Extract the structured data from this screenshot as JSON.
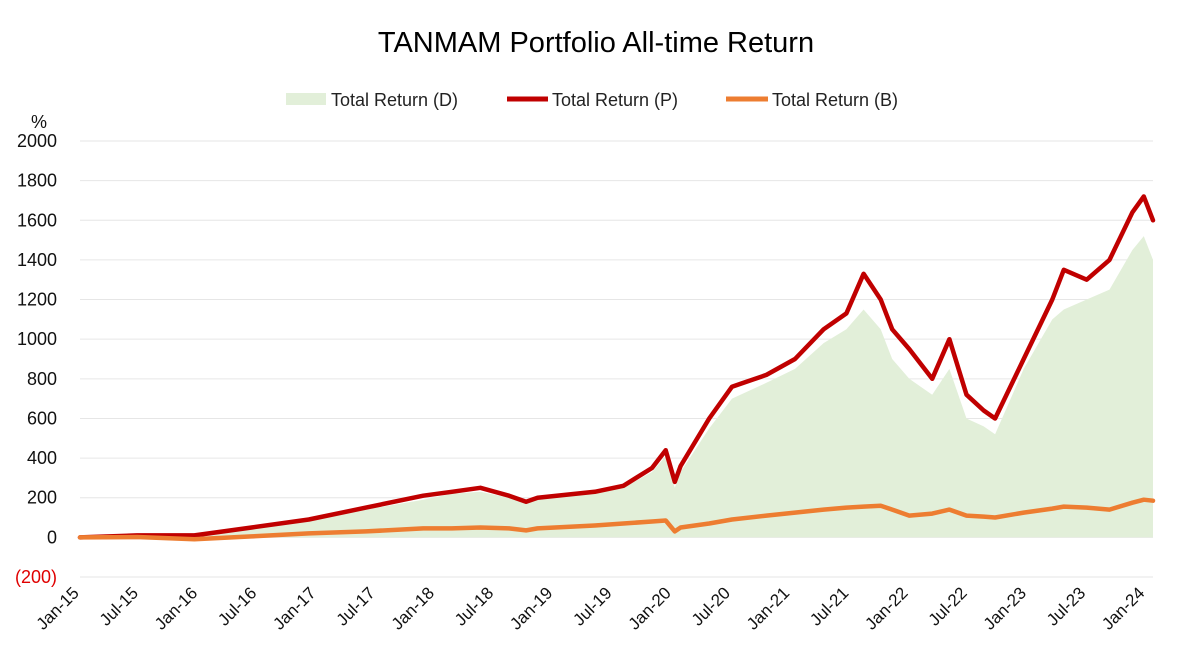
{
  "chart_data": {
    "type": "line",
    "title": "TANMAM Portfolio All-time Return",
    "ylabel": "%",
    "xlabel": "",
    "ylim": [
      -200,
      2000
    ],
    "yticks": [
      {
        "value": 2000,
        "label": "2000"
      },
      {
        "value": 1800,
        "label": "1800"
      },
      {
        "value": 1600,
        "label": "1600"
      },
      {
        "value": 1400,
        "label": "1400"
      },
      {
        "value": 1200,
        "label": "1200"
      },
      {
        "value": 1000,
        "label": "1000"
      },
      {
        "value": 800,
        "label": "800"
      },
      {
        "value": 600,
        "label": "600"
      },
      {
        "value": 400,
        "label": "400"
      },
      {
        "value": 200,
        "label": "200"
      },
      {
        "value": 0,
        "label": "0"
      },
      {
        "value": -200,
        "label": "(200)"
      }
    ],
    "categories": [
      "Jan-15",
      "Jul-15",
      "Jan-16",
      "Jul-16",
      "Jan-17",
      "Jul-17",
      "Jan-18",
      "Jul-18",
      "Jan-19",
      "Jul-19",
      "Jan-20",
      "Jul-20",
      "Jan-21",
      "Jul-21",
      "Jan-22",
      "Jul-22",
      "Jan-23",
      "Jul-23",
      "Jan-24"
    ],
    "x": [
      2015.0,
      2015.5,
      2016.0,
      2016.5,
      2017.0,
      2017.5,
      2018.0,
      2018.25,
      2018.5,
      2018.75,
      2018.9,
      2019.0,
      2019.5,
      2019.75,
      2020.0,
      2020.12,
      2020.2,
      2020.25,
      2020.5,
      2020.7,
      2021.0,
      2021.25,
      2021.5,
      2021.7,
      2021.85,
      2022.0,
      2022.1,
      2022.25,
      2022.45,
      2022.6,
      2022.75,
      2022.9,
      2023.0,
      2023.25,
      2023.5,
      2023.6,
      2023.8,
      2024.0,
      2024.2,
      2024.3,
      2024.38
    ],
    "series": [
      {
        "name": "Total Return (D)",
        "color": "#e2efd9",
        "style": "area",
        "values": [
          0,
          8,
          5,
          40,
          80,
          140,
          190,
          220,
          230,
          200,
          170,
          190,
          220,
          250,
          330,
          410,
          250,
          330,
          550,
          700,
          780,
          850,
          980,
          1050,
          1150,
          1050,
          900,
          800,
          720,
          850,
          600,
          560,
          520,
          850,
          1100,
          1150,
          1200,
          1250,
          1450,
          1520,
          1400
        ]
      },
      {
        "name": "Total Return (P)",
        "color": "#c00000",
        "style": "line",
        "values": [
          0,
          10,
          10,
          50,
          90,
          150,
          210,
          230,
          250,
          210,
          180,
          200,
          230,
          260,
          350,
          440,
          280,
          360,
          600,
          760,
          820,
          900,
          1050,
          1130,
          1330,
          1200,
          1050,
          950,
          800,
          1000,
          720,
          640,
          600,
          900,
          1200,
          1350,
          1300,
          1400,
          1640,
          1720,
          1600
        ]
      },
      {
        "name": "Total Return (B)",
        "color": "#ed7d31",
        "style": "line",
        "values": [
          0,
          2,
          -10,
          5,
          20,
          30,
          45,
          45,
          50,
          45,
          35,
          45,
          60,
          70,
          80,
          85,
          30,
          50,
          70,
          90,
          110,
          125,
          140,
          150,
          155,
          160,
          140,
          110,
          120,
          140,
          110,
          105,
          100,
          125,
          145,
          155,
          150,
          140,
          175,
          190,
          185
        ]
      }
    ],
    "legend_position": "top-center",
    "grid": true
  }
}
